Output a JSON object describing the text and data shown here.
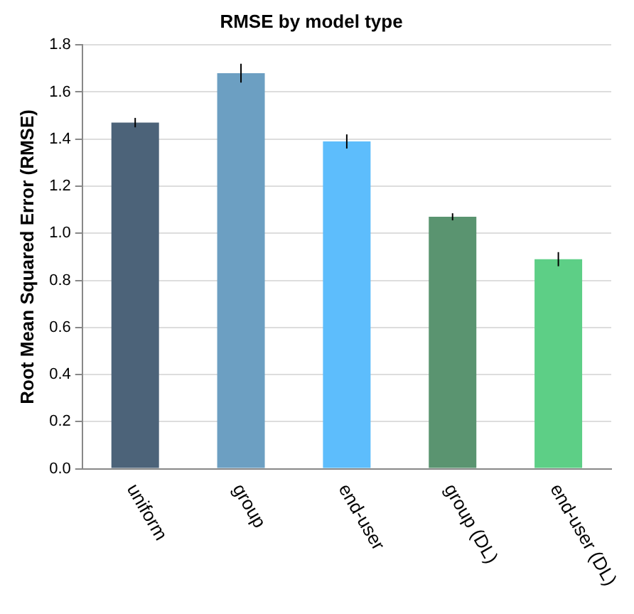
{
  "chart_data": {
    "type": "bar",
    "title": "RMSE by model type",
    "ylabel": "Root Mean Squared Error (RMSE)",
    "categories": [
      "uniform",
      "group",
      "end-user",
      "group (DL)",
      "end-user (DL)"
    ],
    "values": [
      1.47,
      1.68,
      1.39,
      1.07,
      0.89
    ],
    "colors": [
      "#4c6379",
      "#6c9fc2",
      "#5dbdfc",
      "#5a9470",
      "#5dcf86"
    ],
    "errors": [
      0.02,
      0.04,
      0.03,
      0.015,
      0.03
    ],
    "ylim": [
      0,
      1.8
    ],
    "yticks": [
      {
        "value": 0,
        "label": "0.0"
      },
      0.2,
      0.4,
      0.6,
      0.8,
      {
        "value": 1,
        "label": "1.0"
      },
      1.2,
      1.4,
      1.6,
      1.8
    ],
    "grid": "y"
  }
}
